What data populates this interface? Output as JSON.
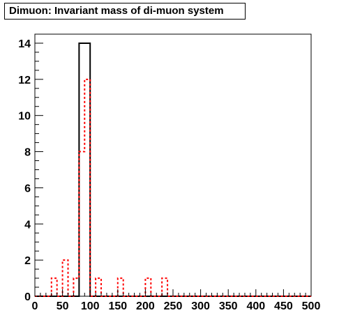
{
  "chart_data": {
    "type": "histogram",
    "title": "Dimuon: Invariant mass of di-muon system",
    "xlabel": "",
    "ylabel": "",
    "xlim": [
      0,
      500
    ],
    "ylim": [
      0,
      14.5
    ],
    "grid": false,
    "legend": "none",
    "bin_width": 10,
    "x_ticks": [
      0,
      50,
      100,
      150,
      200,
      250,
      300,
      350,
      400,
      450,
      500
    ],
    "y_ticks": [
      0,
      2,
      4,
      6,
      8,
      10,
      12,
      14
    ],
    "series": [
      {
        "style": "solid",
        "color": "#000000",
        "bins": [
          [
            80,
            90,
            14
          ],
          [
            90,
            100,
            14
          ]
        ]
      },
      {
        "style": "dashed",
        "color": "#ff0000",
        "bins": [
          [
            30,
            40,
            1
          ],
          [
            50,
            60,
            2
          ],
          [
            70,
            80,
            1
          ],
          [
            80,
            90,
            8
          ],
          [
            90,
            100,
            12
          ],
          [
            110,
            120,
            1
          ],
          [
            150,
            160,
            1
          ],
          [
            200,
            210,
            1
          ],
          [
            230,
            240,
            1
          ]
        ]
      }
    ]
  }
}
